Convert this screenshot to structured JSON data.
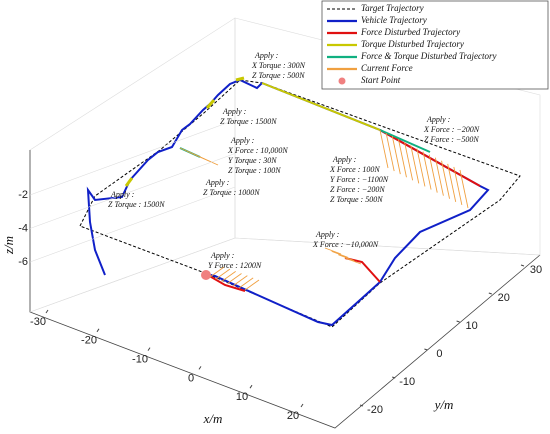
{
  "chart_data": {
    "type": "line3d",
    "xlabel": "x/m",
    "ylabel": "y/m",
    "zlabel": "z/m",
    "xticks": [
      -30,
      -20,
      -10,
      0,
      10,
      20
    ],
    "yticks": [
      -20,
      -10,
      0,
      10,
      20,
      30
    ],
    "zticks": [
      -6,
      -4,
      -2
    ],
    "legend": [
      {
        "name": "Target Trajectory",
        "color": "#000000",
        "style": "dashed"
      },
      {
        "name": "Vehicle Trajectory",
        "color": "#1020c8",
        "style": "solid"
      },
      {
        "name": "Force Disturbed Trajectory",
        "color": "#e01010",
        "style": "solid"
      },
      {
        "name": "Torque Disturbed Trajectory",
        "color": "#c8c800",
        "style": "solid"
      },
      {
        "name": "Force & Torque Disturbed Trajectory",
        "color": "#10b080",
        "style": "solid"
      },
      {
        "name": "Current Force",
        "color": "#f0a040",
        "style": "arrow"
      },
      {
        "name": "Start Point",
        "color": "#f08080",
        "style": "dot"
      }
    ],
    "annotations": [
      {
        "title": "Apply :",
        "lines": [
          "X Torque :   300N",
          "Z Torque :   500N"
        ]
      },
      {
        "title": "Apply :",
        "lines": [
          "Z Torque :   1500N"
        ]
      },
      {
        "title": "Apply :",
        "lines": [
          "X Force :   10,000N",
          "Y Torque :   30N",
          "Z Torque :   100N"
        ]
      },
      {
        "title": "Apply :",
        "lines": [
          "Z Torque :   1000N"
        ]
      },
      {
        "title": "Apply :",
        "lines": [
          "Z Torque :   1500N"
        ]
      },
      {
        "title": "Apply :",
        "lines": [
          "X Force :   100N",
          "Y Force :   −1100N",
          "Z Force :   −200N",
          "Z Torque :   500N"
        ]
      },
      {
        "title": "Apply :",
        "lines": [
          "X Force :   −200N",
          "Z Force :   −500N"
        ]
      },
      {
        "title": "Apply :",
        "lines": [
          "X Force :   −10,000N"
        ]
      },
      {
        "title": "Apply :",
        "lines": [
          "Y Force :   1200N"
        ]
      }
    ]
  }
}
